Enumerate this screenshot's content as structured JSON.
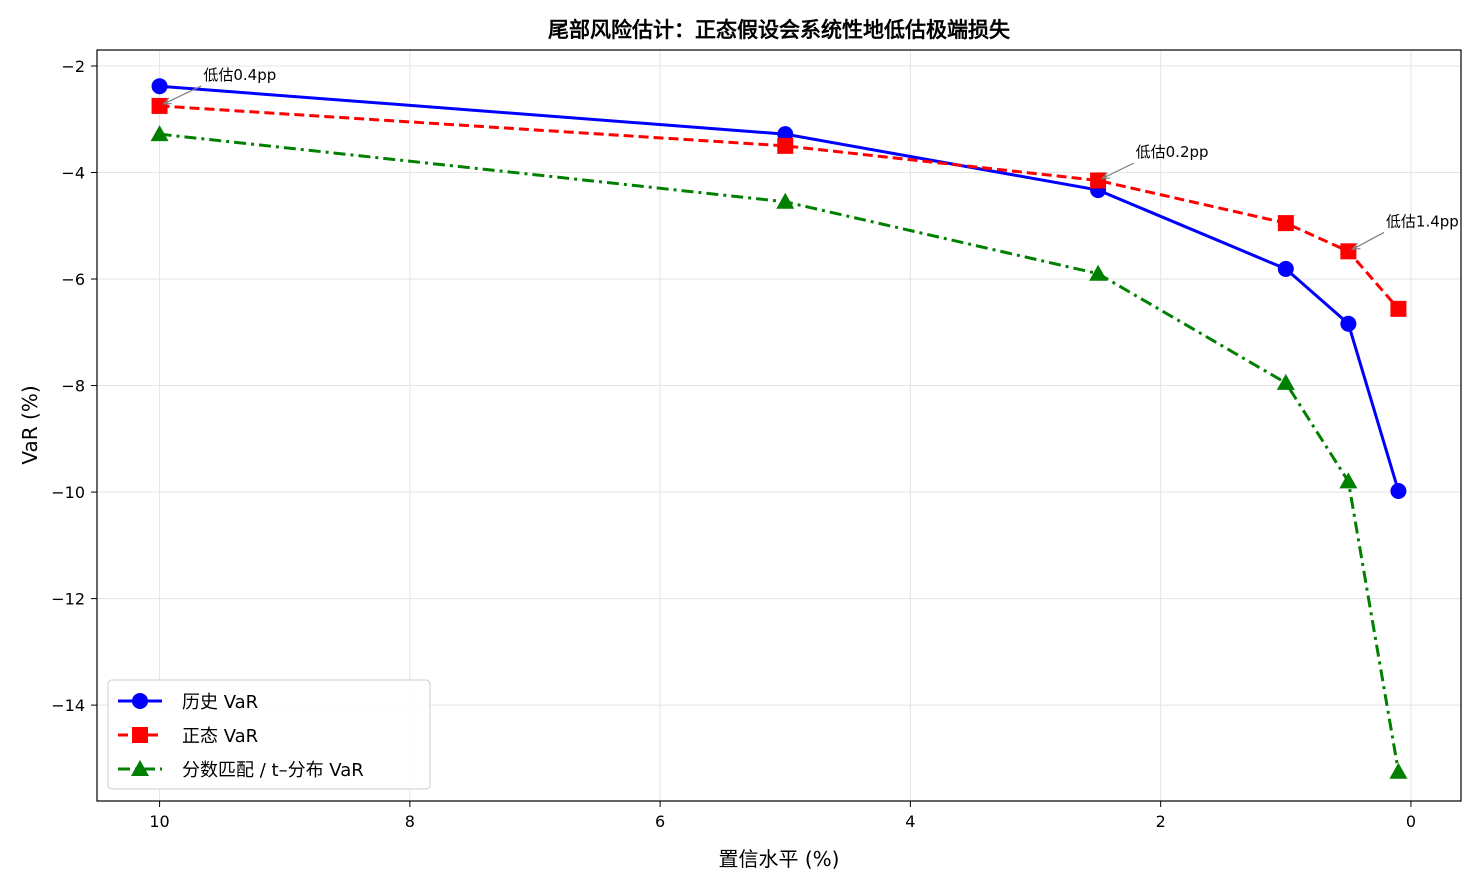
{
  "chart_data": {
    "type": "line",
    "title": "尾部风险估计：正态假设会系统性地低估极端损失",
    "xlabel": "置信水平 (%)",
    "ylabel": "VaR (%)",
    "x_reversed": true,
    "xlim": [
      10.5,
      -0.4
    ],
    "ylim": [
      -15.8,
      -1.7
    ],
    "x_ticks": [
      10,
      8,
      6,
      4,
      2,
      0
    ],
    "y_ticks": [
      -2,
      -4,
      -6,
      -8,
      -10,
      -12,
      -14
    ],
    "x_tick_labels": [
      "10",
      "8",
      "6",
      "4",
      "2",
      "0"
    ],
    "y_tick_labels": [
      "−2",
      "−4",
      "−6",
      "−8",
      "−10",
      "−12",
      "−14"
    ],
    "grid": true,
    "legend_position": "lower-left",
    "x": [
      10,
      5,
      2.5,
      1,
      0.5,
      0.1
    ],
    "series": [
      {
        "name": "历史 VaR",
        "color": "#0000ff",
        "marker": "circle",
        "line_style": "solid",
        "values": [
          -2.38,
          -3.28,
          -4.33,
          -5.81,
          -6.84,
          -9.98
        ]
      },
      {
        "name": "正态 VaR",
        "color": "#ff0000",
        "marker": "square",
        "line_style": "dashed",
        "values": [
          -2.75,
          -3.5,
          -4.15,
          -4.95,
          -5.48,
          -6.56
        ]
      },
      {
        "name": "分数匹配 / t–分布 VaR",
        "color": "#008000",
        "marker": "triangle",
        "line_style": "dashdot",
        "values": [
          -3.28,
          -4.55,
          -5.9,
          -7.95,
          -9.8,
          -15.25
        ]
      }
    ],
    "annotations": [
      {
        "text": "低估0.4pp",
        "x": 10,
        "y": -2.75,
        "text_x": 9.65,
        "text_y": -2.3
      },
      {
        "text": "低估0.2pp",
        "x": 2.5,
        "y": -4.15,
        "text_x": 2.2,
        "text_y": -3.75
      },
      {
        "text": "低估1.4pp",
        "x": 0.5,
        "y": -5.48,
        "text_x": 0.2,
        "text_y": -5.05
      }
    ]
  }
}
